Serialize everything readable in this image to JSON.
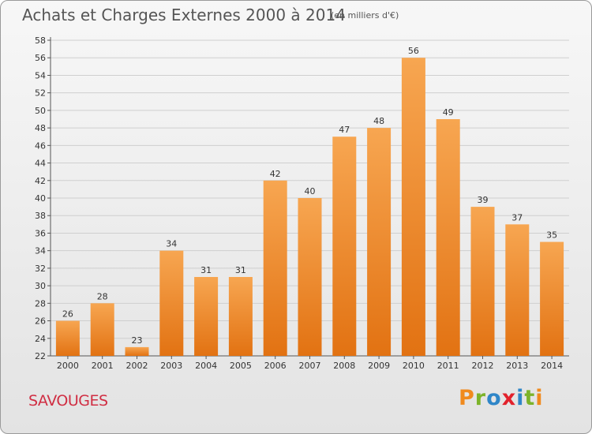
{
  "header": {
    "title": "Achats et Charges Externes 2000 à 2014",
    "unit": "(en milliers d'€)"
  },
  "footer": {
    "commune": "SAVOUGES",
    "logo_text": "Proxiti"
  },
  "colors": {
    "bar_top": "#f7a651",
    "bar_bottom": "#e27212",
    "commune_text": "#d02e43",
    "logo_letters": [
      "#f08a1e",
      "#7cb32a",
      "#2f86c8",
      "#e2222c",
      "#2f86c8",
      "#7cb32a",
      "#f08a1e"
    ]
  },
  "chart_data": {
    "type": "bar",
    "title": "Achats et Charges Externes 2000 à 2014",
    "categories": [
      "2000",
      "2001",
      "2002",
      "2003",
      "2004",
      "2005",
      "2006",
      "2007",
      "2008",
      "2009",
      "2010",
      "2011",
      "2012",
      "2013",
      "2014"
    ],
    "values": [
      26,
      28,
      23,
      34,
      31,
      31,
      42,
      40,
      47,
      48,
      56,
      49,
      39,
      37,
      35
    ],
    "ylim": [
      22,
      58
    ],
    "yticks": [
      22,
      24,
      26,
      28,
      30,
      32,
      34,
      36,
      38,
      40,
      42,
      44,
      46,
      48,
      50,
      52,
      54,
      56,
      58
    ],
    "grid": true,
    "xlabel": "",
    "ylabel": ""
  }
}
